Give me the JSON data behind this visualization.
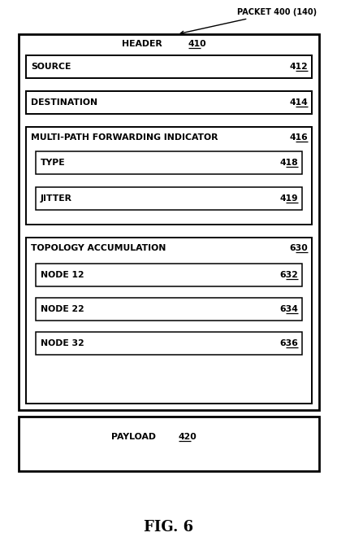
{
  "fig_label": "FIG. 6",
  "background_color": "#ffffff",
  "packet_label": "PACKET 400 (140)",
  "header_label": "HEADER",
  "header_ref": "410",
  "source_label": "SOURCE",
  "source_ref": "412",
  "destination_label": "DESTINATION",
  "destination_ref": "414",
  "mpfi_label": "MULTI-PATH FORWARDING INDICATOR",
  "mpfi_ref": "416",
  "type_label": "TYPE",
  "type_ref": "418",
  "jitter_label": "JITTER",
  "jitter_ref": "419",
  "topo_label": "TOPOLOGY ACCUMULATION",
  "topo_ref": "630",
  "node1_label": "NODE 12",
  "node1_ref": "632",
  "node2_label": "NODE 22",
  "node2_ref": "634",
  "node3_label": "NODE 32",
  "node3_ref": "636",
  "payload_label": "PAYLOAD",
  "payload_ref": "420",
  "outer_lw": 2.0,
  "inner_lw": 1.4,
  "inner2_lw": 1.1
}
